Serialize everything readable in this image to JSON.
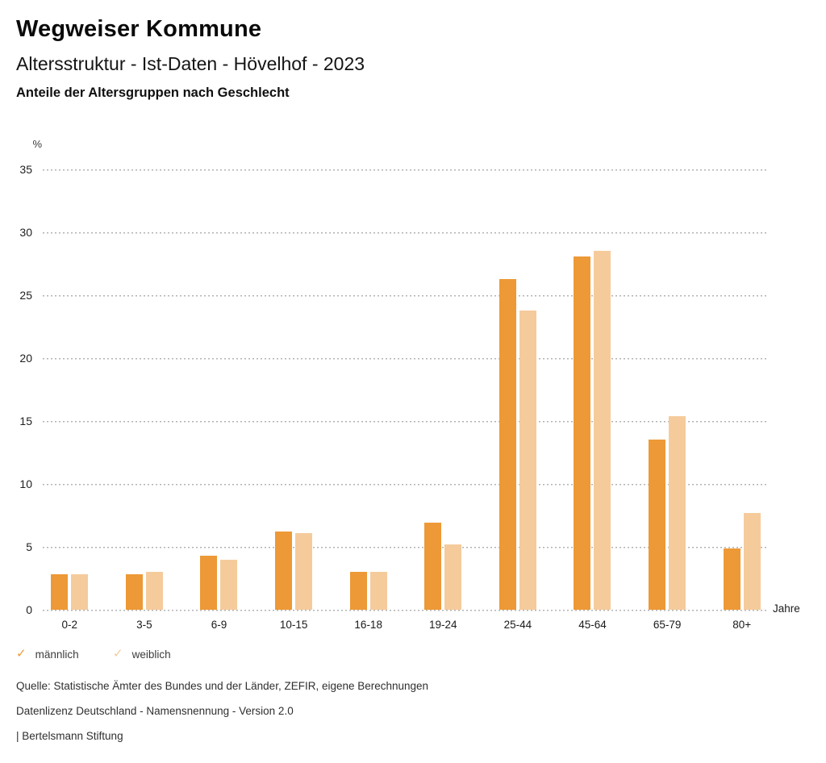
{
  "header": {
    "title": "Wegweiser Kommune",
    "subtitle": "Altersstruktur - Ist-Daten - Hövelhof - 2023",
    "chart_label": "Anteile der Altersgruppen nach Geschlecht"
  },
  "chart_data": {
    "type": "bar",
    "title": "Anteile der Altersgruppen nach Geschlecht",
    "ylabel": "%",
    "xlabel": "Jahre",
    "ylim": [
      0,
      35
    ],
    "ytick_step": 5,
    "grid": "horizontal-dotted",
    "legend_position": "bottom-left",
    "categories": [
      "0-2",
      "3-5",
      "6-9",
      "10-15",
      "16-18",
      "19-24",
      "25-44",
      "45-64",
      "65-79",
      "80+"
    ],
    "series": [
      {
        "name": "männlich",
        "color": "#ED9937",
        "values": [
          2.8,
          2.8,
          4.3,
          6.2,
          3.0,
          6.9,
          26.3,
          28.1,
          13.5,
          4.9
        ]
      },
      {
        "name": "weiblich",
        "color": "#F5CB9C",
        "values": [
          2.8,
          3.0,
          4.0,
          6.1,
          3.0,
          5.2,
          23.8,
          28.5,
          15.4,
          7.7
        ]
      }
    ]
  },
  "legend": {
    "check_icon": "✓",
    "items": [
      {
        "label": "männlich",
        "color": "#ED9937"
      },
      {
        "label": "weiblich",
        "color": "#F5CB9C"
      }
    ]
  },
  "footer": {
    "source": "Quelle: Statistische Ämter des Bundes und der Länder, ZEFIR, eigene Berechnungen",
    "license": "Datenlizenz Deutschland - Namensnennung - Version 2.0",
    "attribution": "| Bertelsmann Stiftung"
  }
}
